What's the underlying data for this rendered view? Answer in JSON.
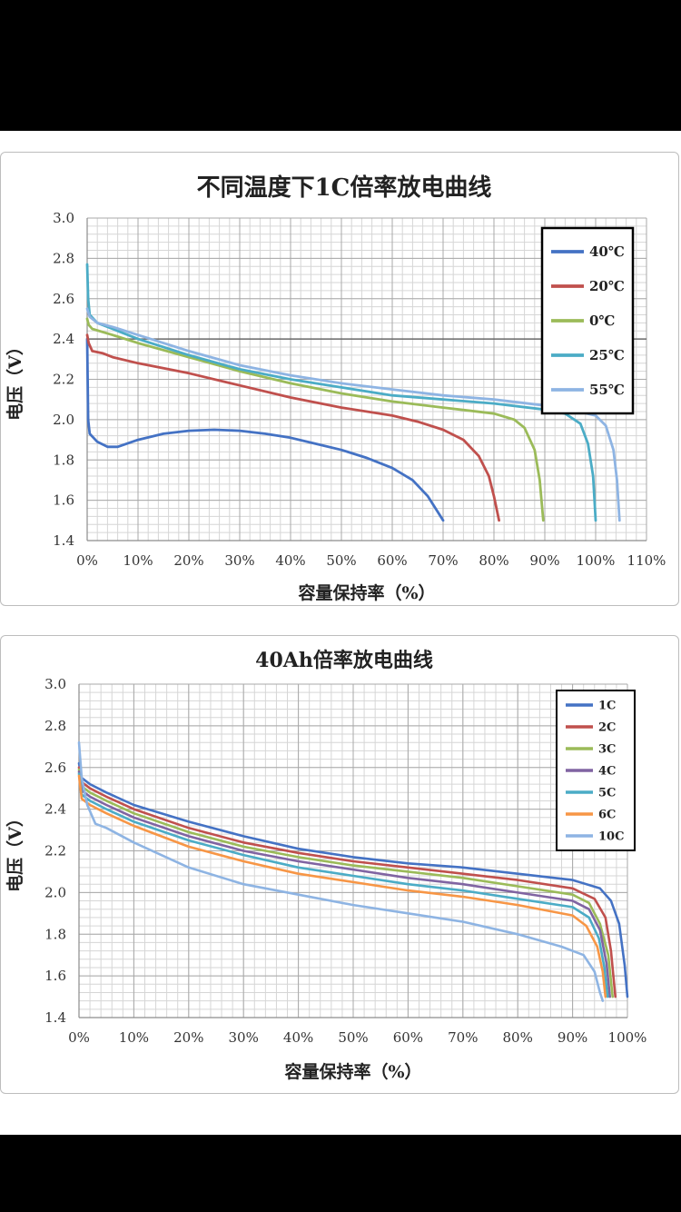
{
  "chart_data": [
    {
      "type": "line",
      "title": "不同温度下1C倍率放电曲线",
      "xlabel": "容量保持率（%）",
      "ylabel": "电压（V）",
      "xlim": [
        0,
        110
      ],
      "ylim": [
        1.4,
        3.0
      ],
      "x_ticks": [
        "0%",
        "10%",
        "20%",
        "30%",
        "40%",
        "50%",
        "60%",
        "70%",
        "80%",
        "90%",
        "100%",
        "110%"
      ],
      "y_ticks": [
        "1.4",
        "1.6",
        "1.8",
        "2.0",
        "2.2",
        "2.4",
        "2.6",
        "2.8",
        "3.0"
      ],
      "grid": true,
      "legend_position": "top-right",
      "reference_line": 2.4,
      "series": [
        {
          "name": "40℃",
          "color": "#4472c4",
          "points": [
            [
              0,
              2.4
            ],
            [
              0.2,
              2.0
            ],
            [
              0.5,
              1.93
            ],
            [
              2,
              1.89
            ],
            [
              4,
              1.865
            ],
            [
              6,
              1.865
            ],
            [
              10,
              1.9
            ],
            [
              15,
              1.93
            ],
            [
              20,
              1.945
            ],
            [
              25,
              1.95
            ],
            [
              30,
              1.945
            ],
            [
              35,
              1.93
            ],
            [
              40,
              1.91
            ],
            [
              45,
              1.88
            ],
            [
              50,
              1.85
            ],
            [
              55,
              1.81
            ],
            [
              60,
              1.76
            ],
            [
              64,
              1.7
            ],
            [
              67,
              1.62
            ],
            [
              69,
              1.54
            ],
            [
              70,
              1.5
            ]
          ]
        },
        {
          "name": "20℃",
          "color": "#c0504d",
          "points": [
            [
              0,
              2.42
            ],
            [
              0.3,
              2.38
            ],
            [
              1,
              2.34
            ],
            [
              3,
              2.33
            ],
            [
              5,
              2.31
            ],
            [
              10,
              2.28
            ],
            [
              20,
              2.23
            ],
            [
              30,
              2.17
            ],
            [
              40,
              2.11
            ],
            [
              50,
              2.06
            ],
            [
              60,
              2.02
            ],
            [
              65,
              1.99
            ],
            [
              70,
              1.95
            ],
            [
              74,
              1.9
            ],
            [
              77,
              1.82
            ],
            [
              79,
              1.72
            ],
            [
              80,
              1.62
            ],
            [
              81,
              1.5
            ]
          ]
        },
        {
          "name": "0℃",
          "color": "#9bbb59",
          "points": [
            [
              0,
              2.5
            ],
            [
              0.3,
              2.47
            ],
            [
              1,
              2.45
            ],
            [
              5,
              2.42
            ],
            [
              10,
              2.38
            ],
            [
              20,
              2.31
            ],
            [
              30,
              2.24
            ],
            [
              40,
              2.18
            ],
            [
              50,
              2.13
            ],
            [
              60,
              2.09
            ],
            [
              70,
              2.06
            ],
            [
              80,
              2.03
            ],
            [
              84,
              2.0
            ],
            [
              86,
              1.96
            ],
            [
              88,
              1.85
            ],
            [
              89,
              1.7
            ],
            [
              89.7,
              1.5
            ]
          ]
        },
        {
          "name": "25℃",
          "color": "#4bacc6",
          "points": [
            [
              0,
              2.77
            ],
            [
              0.2,
              2.6
            ],
            [
              0.5,
              2.52
            ],
            [
              2,
              2.48
            ],
            [
              5,
              2.45
            ],
            [
              10,
              2.4
            ],
            [
              20,
              2.32
            ],
            [
              30,
              2.25
            ],
            [
              40,
              2.2
            ],
            [
              50,
              2.16
            ],
            [
              60,
              2.12
            ],
            [
              70,
              2.1
            ],
            [
              80,
              2.08
            ],
            [
              90,
              2.05
            ],
            [
              94,
              2.03
            ],
            [
              97,
              1.98
            ],
            [
              98.5,
              1.88
            ],
            [
              99.5,
              1.72
            ],
            [
              100,
              1.5
            ]
          ]
        },
        {
          "name": "55℃",
          "color": "#8eb4e3",
          "points": [
            [
              0,
              2.55
            ],
            [
              0.5,
              2.51
            ],
            [
              2,
              2.48
            ],
            [
              5,
              2.46
            ],
            [
              10,
              2.42
            ],
            [
              20,
              2.34
            ],
            [
              30,
              2.27
            ],
            [
              40,
              2.22
            ],
            [
              50,
              2.18
            ],
            [
              60,
              2.15
            ],
            [
              70,
              2.12
            ],
            [
              80,
              2.1
            ],
            [
              90,
              2.07
            ],
            [
              95,
              2.05
            ],
            [
              100,
              2.02
            ],
            [
              102,
              1.97
            ],
            [
              103.5,
              1.85
            ],
            [
              104.2,
              1.7
            ],
            [
              104.7,
              1.5
            ]
          ]
        }
      ]
    },
    {
      "type": "line",
      "title": "40Ah倍率放电曲线",
      "xlabel": "容量保持率（%）",
      "ylabel": "电压（V）",
      "xlim": [
        0,
        100
      ],
      "ylim": [
        1.4,
        3.0
      ],
      "x_ticks": [
        "0%",
        "10%",
        "20%",
        "30%",
        "40%",
        "50%",
        "60%",
        "70%",
        "80%",
        "90%",
        "100%"
      ],
      "y_ticks": [
        "1.4",
        "1.6",
        "1.8",
        "2.0",
        "2.2",
        "2.4",
        "2.6",
        "2.8",
        "3.0"
      ],
      "grid": true,
      "legend_position": "top-right",
      "series": [
        {
          "name": "1C",
          "color": "#4472c4",
          "points": [
            [
              0,
              2.62
            ],
            [
              0.5,
              2.55
            ],
            [
              2,
              2.52
            ],
            [
              5,
              2.48
            ],
            [
              10,
              2.42
            ],
            [
              20,
              2.34
            ],
            [
              30,
              2.27
            ],
            [
              40,
              2.21
            ],
            [
              50,
              2.17
            ],
            [
              60,
              2.14
            ],
            [
              70,
              2.12
            ],
            [
              80,
              2.09
            ],
            [
              90,
              2.06
            ],
            [
              95,
              2.02
            ],
            [
              97,
              1.96
            ],
            [
              98.5,
              1.85
            ],
            [
              99.5,
              1.65
            ],
            [
              100,
              1.5
            ]
          ]
        },
        {
          "name": "2C",
          "color": "#c0504d",
          "points": [
            [
              0,
              2.6
            ],
            [
              0.5,
              2.53
            ],
            [
              2,
              2.5
            ],
            [
              5,
              2.46
            ],
            [
              10,
              2.4
            ],
            [
              20,
              2.31
            ],
            [
              30,
              2.24
            ],
            [
              40,
              2.19
            ],
            [
              50,
              2.15
            ],
            [
              60,
              2.12
            ],
            [
              70,
              2.09
            ],
            [
              80,
              2.06
            ],
            [
              90,
              2.02
            ],
            [
              94,
              1.97
            ],
            [
              96,
              1.88
            ],
            [
              97,
              1.72
            ],
            [
              97.8,
              1.5
            ]
          ]
        },
        {
          "name": "3C",
          "color": "#9bbb59",
          "points": [
            [
              0,
              2.59
            ],
            [
              0.5,
              2.51
            ],
            [
              2,
              2.48
            ],
            [
              5,
              2.44
            ],
            [
              10,
              2.38
            ],
            [
              20,
              2.29
            ],
            [
              30,
              2.22
            ],
            [
              40,
              2.17
            ],
            [
              50,
              2.13
            ],
            [
              60,
              2.1
            ],
            [
              70,
              2.07
            ],
            [
              80,
              2.03
            ],
            [
              90,
              1.99
            ],
            [
              93,
              1.95
            ],
            [
              95,
              1.85
            ],
            [
              96.5,
              1.7
            ],
            [
              97.3,
              1.5
            ]
          ]
        },
        {
          "name": "4C",
          "color": "#8064a2",
          "points": [
            [
              0,
              2.58
            ],
            [
              0.5,
              2.49
            ],
            [
              2,
              2.46
            ],
            [
              5,
              2.42
            ],
            [
              10,
              2.36
            ],
            [
              20,
              2.27
            ],
            [
              30,
              2.2
            ],
            [
              40,
              2.15
            ],
            [
              50,
              2.11
            ],
            [
              60,
              2.07
            ],
            [
              70,
              2.04
            ],
            [
              80,
              2.0
            ],
            [
              90,
              1.96
            ],
            [
              93,
              1.92
            ],
            [
              95,
              1.82
            ],
            [
              96.2,
              1.66
            ],
            [
              96.8,
              1.5
            ]
          ]
        },
        {
          "name": "5C",
          "color": "#4bacc6",
          "points": [
            [
              0,
              2.57
            ],
            [
              0.5,
              2.47
            ],
            [
              2,
              2.44
            ],
            [
              5,
              2.4
            ],
            [
              10,
              2.34
            ],
            [
              20,
              2.25
            ],
            [
              30,
              2.18
            ],
            [
              40,
              2.12
            ],
            [
              50,
              2.08
            ],
            [
              60,
              2.04
            ],
            [
              70,
              2.01
            ],
            [
              80,
              1.97
            ],
            [
              90,
              1.93
            ],
            [
              93,
              1.88
            ],
            [
              94.8,
              1.78
            ],
            [
              95.8,
              1.64
            ],
            [
              96.4,
              1.5
            ]
          ]
        },
        {
          "name": "6C",
          "color": "#f79646",
          "points": [
            [
              0,
              2.56
            ],
            [
              0.5,
              2.45
            ],
            [
              2,
              2.42
            ],
            [
              5,
              2.38
            ],
            [
              10,
              2.32
            ],
            [
              20,
              2.22
            ],
            [
              30,
              2.15
            ],
            [
              40,
              2.09
            ],
            [
              50,
              2.05
            ],
            [
              60,
              2.01
            ],
            [
              70,
              1.98
            ],
            [
              80,
              1.94
            ],
            [
              90,
              1.89
            ],
            [
              92.5,
              1.84
            ],
            [
              94.5,
              1.74
            ],
            [
              95.5,
              1.62
            ],
            [
              96,
              1.5
            ]
          ]
        },
        {
          "name": "10C",
          "color": "#8eb4e3",
          "points": [
            [
              0,
              2.72
            ],
            [
              0.5,
              2.55
            ],
            [
              1.5,
              2.42
            ],
            [
              3,
              2.33
            ],
            [
              5,
              2.31
            ],
            [
              10,
              2.24
            ],
            [
              20,
              2.12
            ],
            [
              30,
              2.04
            ],
            [
              40,
              1.99
            ],
            [
              50,
              1.94
            ],
            [
              60,
              1.9
            ],
            [
              70,
              1.86
            ],
            [
              80,
              1.8
            ],
            [
              88,
              1.74
            ],
            [
              92,
              1.7
            ],
            [
              94,
              1.62
            ],
            [
              95,
              1.52
            ],
            [
              95.5,
              1.48
            ]
          ]
        }
      ]
    }
  ]
}
